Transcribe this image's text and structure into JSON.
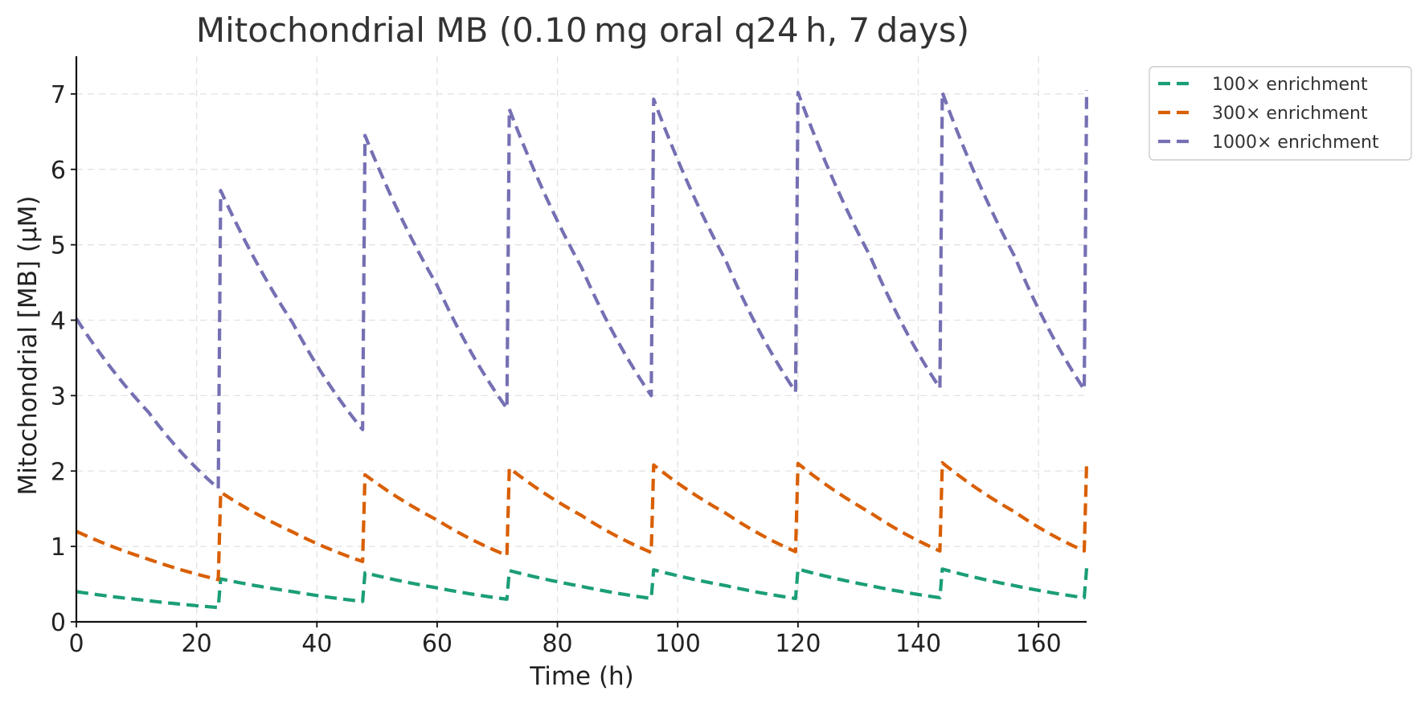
{
  "chart_data": {
    "type": "line",
    "title": "Mitochondrial MB (0.10 mg oral q24 h, 7 days)",
    "xlabel": "Time (h)",
    "ylabel": "Mitochondrial [MB] (μM)",
    "xlim": [
      0,
      168
    ],
    "ylim": [
      0,
      7.5
    ],
    "xticks": [
      0,
      20,
      40,
      60,
      80,
      100,
      120,
      140,
      160
    ],
    "yticks": [
      0,
      1,
      2,
      3,
      4,
      5,
      6,
      7
    ],
    "grid": true,
    "legend_position": "outside-top-right",
    "dosing_interval_h": 24,
    "series": [
      {
        "name": "100× enrichment",
        "color": "#1b9e77",
        "points": [
          [
            0,
            0.4
          ],
          [
            12,
            0.28
          ],
          [
            23.6,
            0.19
          ],
          [
            24,
            0.57
          ],
          [
            36,
            0.4
          ],
          [
            47.6,
            0.27
          ],
          [
            48,
            0.65
          ],
          [
            60,
            0.45
          ],
          [
            71.6,
            0.3
          ],
          [
            72,
            0.68
          ],
          [
            84,
            0.47
          ],
          [
            95.6,
            0.31
          ],
          [
            96,
            0.69
          ],
          [
            108,
            0.48
          ],
          [
            119.6,
            0.31
          ],
          [
            120,
            0.7
          ],
          [
            132,
            0.48
          ],
          [
            143.6,
            0.32
          ],
          [
            144,
            0.7
          ],
          [
            156,
            0.48
          ],
          [
            167.6,
            0.32
          ],
          [
            168,
            0.71
          ]
        ]
      },
      {
        "name": "300× enrichment",
        "color": "#d95f02",
        "points": [
          [
            0,
            1.2
          ],
          [
            12,
            0.83
          ],
          [
            23.6,
            0.56
          ],
          [
            24,
            1.72
          ],
          [
            36,
            1.19
          ],
          [
            47.6,
            0.8
          ],
          [
            48,
            1.95
          ],
          [
            60,
            1.35
          ],
          [
            71.6,
            0.88
          ],
          [
            72,
            2.04
          ],
          [
            84,
            1.41
          ],
          [
            95.6,
            0.92
          ],
          [
            96,
            2.08
          ],
          [
            108,
            1.44
          ],
          [
            119.6,
            0.93
          ],
          [
            120,
            2.1
          ],
          [
            132,
            1.45
          ],
          [
            143.6,
            0.94
          ],
          [
            144,
            2.11
          ],
          [
            156,
            1.46
          ],
          [
            167.6,
            0.94
          ],
          [
            168,
            2.11
          ]
        ]
      },
      {
        "name": "1000× enrichment",
        "color": "#7570b3",
        "points": [
          [
            0,
            4.02
          ],
          [
            12,
            2.78
          ],
          [
            23.6,
            1.77
          ],
          [
            24,
            5.72
          ],
          [
            36,
            3.96
          ],
          [
            47.6,
            2.55
          ],
          [
            48,
            6.45
          ],
          [
            60,
            4.46
          ],
          [
            71.6,
            2.83
          ],
          [
            72,
            6.8
          ],
          [
            84,
            4.7
          ],
          [
            95.6,
            3.0
          ],
          [
            96,
            6.93
          ],
          [
            108,
            4.79
          ],
          [
            119.6,
            3.05
          ],
          [
            120,
            7.02
          ],
          [
            132,
            4.85
          ],
          [
            143.6,
            3.1
          ],
          [
            144,
            7.02
          ],
          [
            156,
            4.85
          ],
          [
            167.6,
            3.08
          ],
          [
            168,
            7.05
          ]
        ]
      }
    ]
  }
}
